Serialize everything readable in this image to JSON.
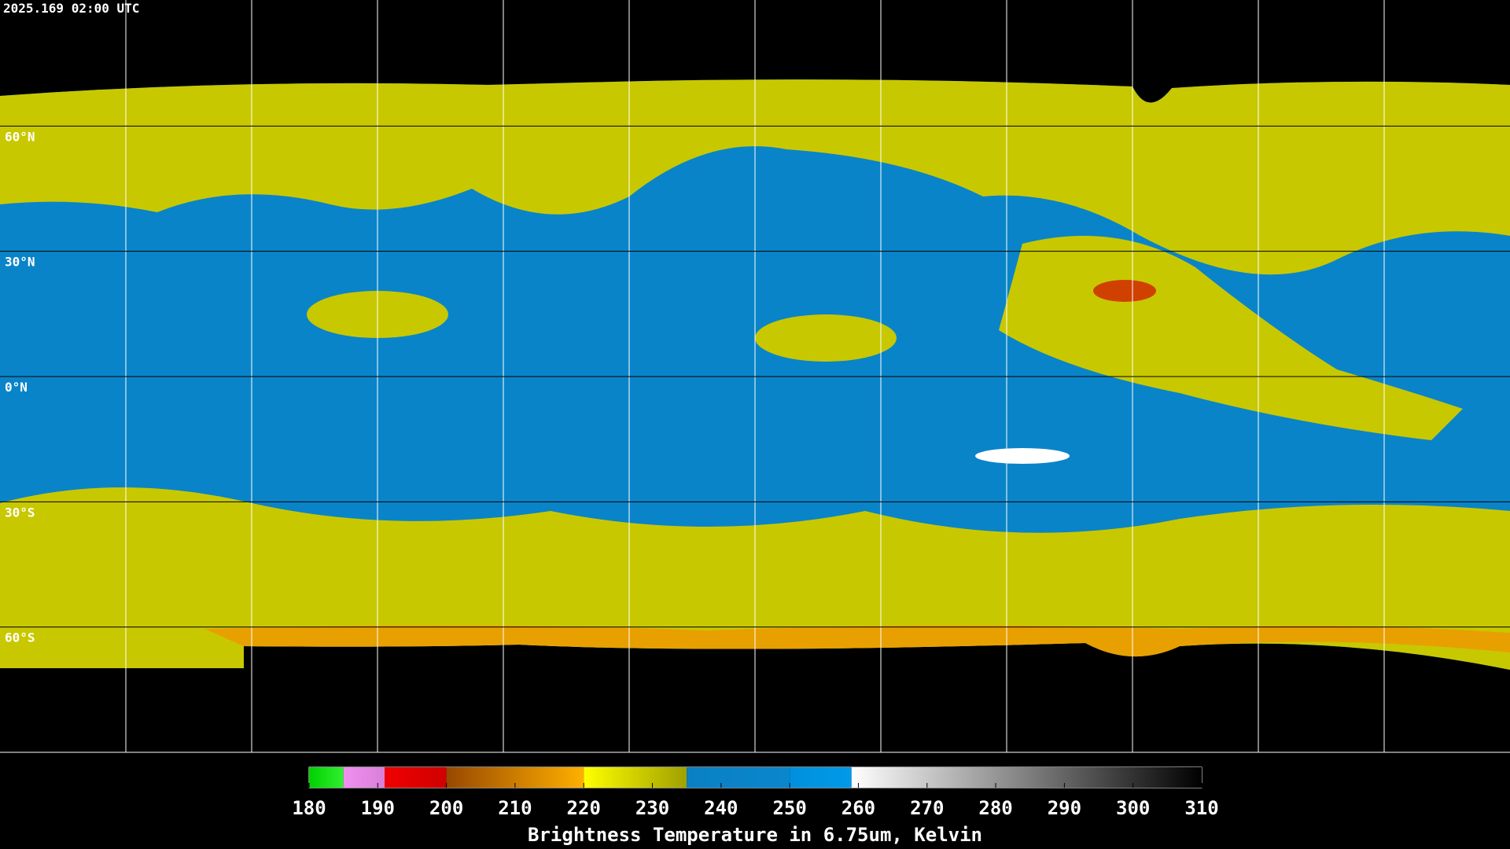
{
  "title": "2025.169 02:00 UTC",
  "latitude_labels": [
    {
      "value": 60,
      "label": "60°N"
    },
    {
      "value": 30,
      "label": "30°N"
    },
    {
      "value": 0,
      "label": "0°N"
    },
    {
      "value": -30,
      "label": "30°S"
    },
    {
      "value": -60,
      "label": "60°S"
    }
  ],
  "colorbar": {
    "label": "Brightness Temperature in 6.75um, Kelvin",
    "range": [
      180,
      310
    ],
    "ticks": [
      180,
      190,
      200,
      210,
      220,
      230,
      240,
      250,
      260,
      270,
      280,
      290,
      300,
      310
    ],
    "segments": [
      {
        "from": 180,
        "to": 185,
        "colors": [
          "#00d000",
          "#30f030"
        ]
      },
      {
        "from": 185,
        "to": 191,
        "colors": [
          "#f090f0",
          "#d880d8"
        ]
      },
      {
        "from": 191,
        "to": 200,
        "colors": [
          "#f00000",
          "#d00000"
        ]
      },
      {
        "from": 200,
        "to": 220,
        "colors": [
          "#984800",
          "#ffb000"
        ]
      },
      {
        "from": 220,
        "to": 235,
        "colors": [
          "#ffff00",
          "#a0a000"
        ]
      },
      {
        "from": 235,
        "to": 250,
        "colors": [
          "#0a80c4",
          "#0a86cc"
        ]
      },
      {
        "from": 250,
        "to": 259,
        "colors": [
          "#0090dd",
          "#009ae8"
        ]
      },
      {
        "from": 259,
        "to": 310,
        "colors": [
          "#ffffff",
          "#000000"
        ]
      }
    ]
  }
}
